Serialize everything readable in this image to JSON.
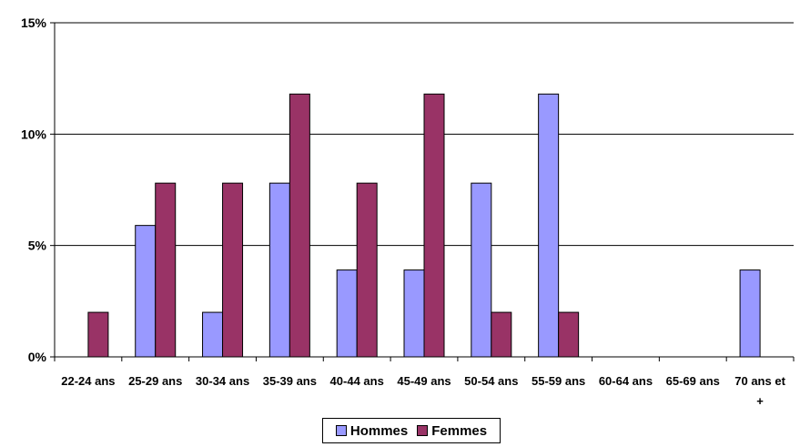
{
  "chart_data": {
    "type": "bar",
    "categories": [
      "22-24 ans",
      "25-29 ans",
      "30-34 ans",
      "35-39 ans",
      "40-44 ans",
      "45-49 ans",
      "50-54 ans",
      "55-59 ans",
      "60-64 ans",
      "65-69 ans",
      "70 ans et +"
    ],
    "series": [
      {
        "name": "Hommes",
        "color": "#9999ff",
        "values": [
          0,
          5.9,
          2.0,
          7.8,
          3.9,
          3.9,
          7.8,
          11.8,
          0,
          0,
          3.9
        ]
      },
      {
        "name": "Femmes",
        "color": "#993366",
        "values": [
          2.0,
          7.8,
          7.8,
          11.8,
          7.8,
          11.8,
          2.0,
          2.0,
          0,
          0,
          0
        ]
      }
    ],
    "y_ticks": [
      "0%",
      "5%",
      "10%",
      "15%"
    ],
    "ylim": [
      0,
      15
    ],
    "grid": true,
    "legend_position": "bottom"
  }
}
